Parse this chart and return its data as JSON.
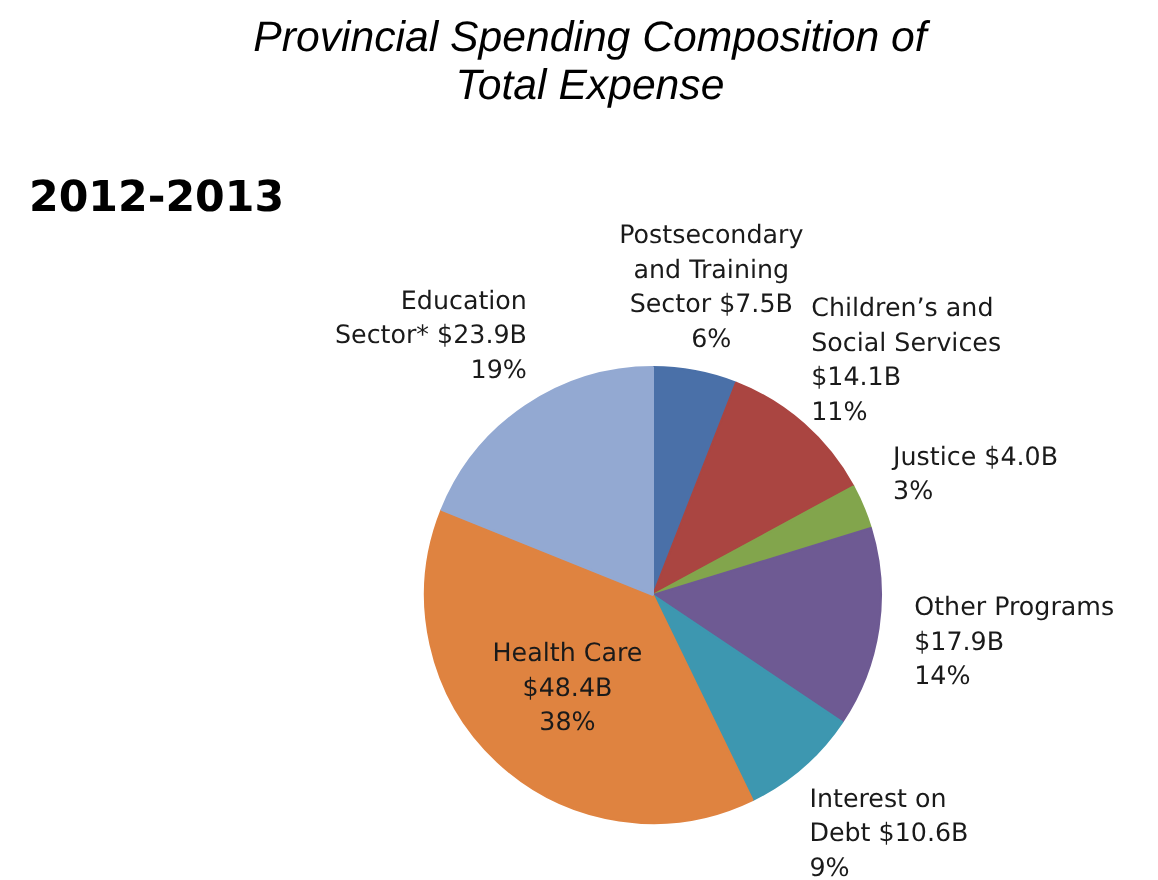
{
  "chart_data": {
    "type": "pie",
    "title": "Provincial Spending Composition of\nTotal Expense",
    "subtitle": "2012-2013",
    "categories": [
      "Postsecondary and Training Sector",
      "Children’s and Social Services",
      "Justice",
      "Other Programs",
      "Interest on Debt",
      "Health Care",
      "Education Sector*"
    ],
    "values": [
      7.5,
      14.1,
      4.0,
      17.9,
      10.6,
      48.4,
      23.9
    ],
    "value_labels": [
      "$7.5B",
      "$14.1B",
      "$4.0B",
      "$17.9B",
      "$10.6B",
      "$48.4B",
      "$23.9B"
    ],
    "annotations": [
      "6%",
      "11%",
      "3%",
      "14%",
      "9%",
      "38%",
      "19%"
    ],
    "colors": [
      "#4a70a8",
      "#aa4541",
      "#82a54c",
      "#6e5a93",
      "#3d97b0",
      "#df8340",
      "#93a9d2"
    ]
  }
}
